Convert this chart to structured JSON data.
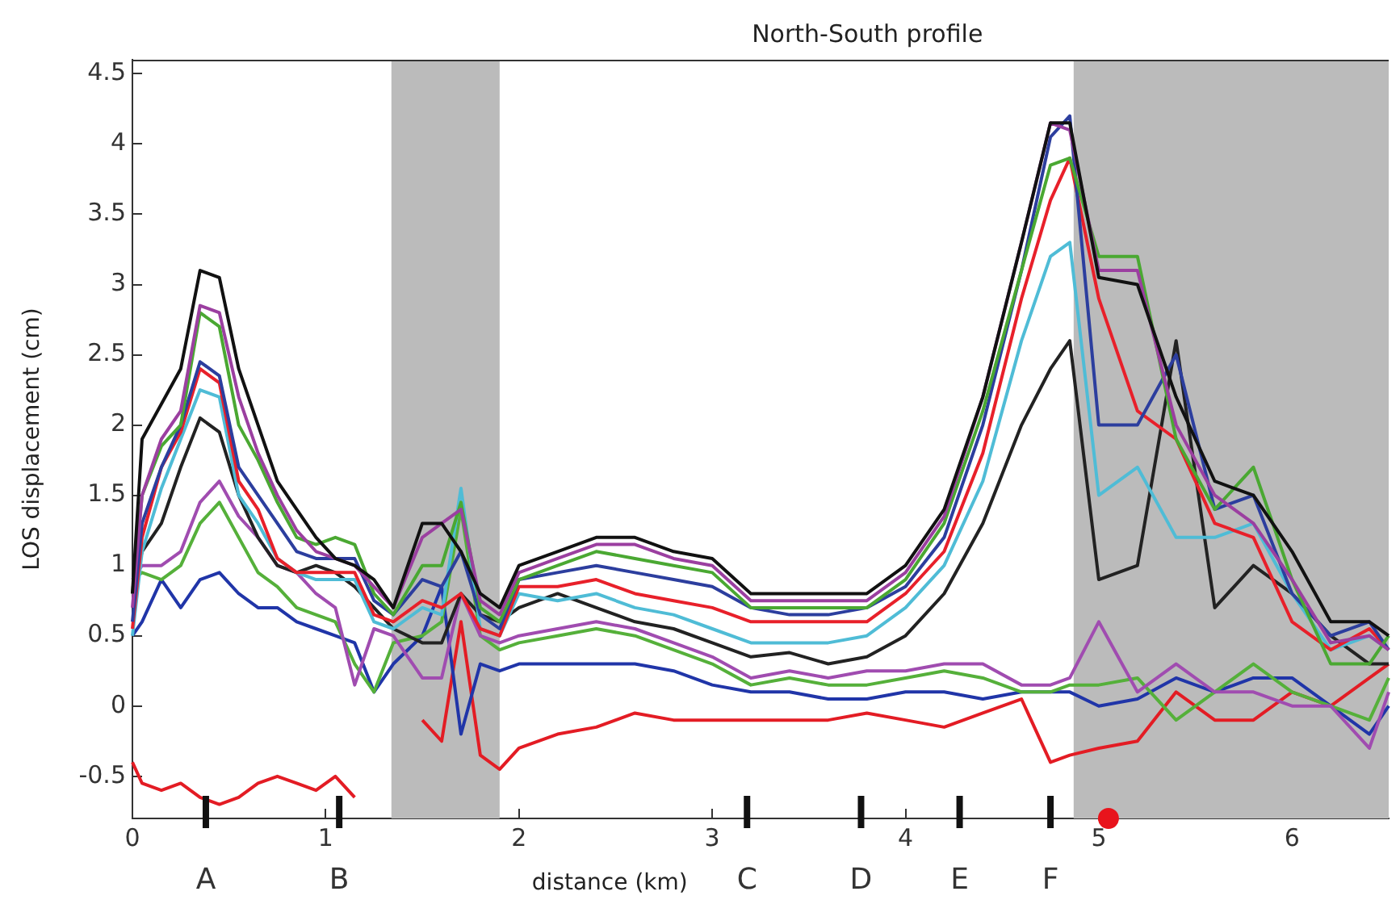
{
  "chart_data": {
    "type": "line",
    "title": "North-South profile",
    "xlabel": "distance (km)",
    "ylabel": "LOS displacement (cm)",
    "x": [
      0,
      0.05,
      0.15,
      0.25,
      0.35,
      0.45,
      0.55,
      0.65,
      0.75,
      0.85,
      0.95,
      1.05,
      1.15,
      1.25,
      1.35,
      1.5,
      1.6,
      1.7,
      1.8,
      1.9,
      2.0,
      2.2,
      2.4,
      2.6,
      2.8,
      3.0,
      3.2,
      3.4,
      3.6,
      3.8,
      4.0,
      4.2,
      4.4,
      4.6,
      4.75,
      4.85,
      5.0,
      5.2,
      5.4,
      5.6,
      5.8,
      6.0,
      6.2,
      6.4,
      6.5
    ],
    "series": [
      {
        "color": "#111111",
        "values": [
          0.8,
          1.9,
          2.15,
          2.4,
          3.1,
          3.05,
          2.4,
          2.0,
          1.6,
          1.4,
          1.2,
          1.05,
          1.0,
          0.9,
          0.7,
          1.3,
          1.3,
          1.1,
          0.8,
          0.7,
          1.0,
          1.1,
          1.2,
          1.2,
          1.1,
          1.05,
          0.8,
          0.8,
          0.8,
          0.8,
          1.0,
          1.4,
          2.2,
          3.3,
          4.15,
          4.15,
          3.05,
          3.0,
          2.2,
          1.6,
          1.5,
          1.1,
          0.6,
          0.6,
          0.5
        ]
      },
      {
        "color": "#9b3fa0",
        "values": [
          0.7,
          1.5,
          1.9,
          2.1,
          2.85,
          2.8,
          2.2,
          1.8,
          1.5,
          1.25,
          1.1,
          1.05,
          1.0,
          0.85,
          0.7,
          1.2,
          1.3,
          1.4,
          0.75,
          0.65,
          0.95,
          1.05,
          1.15,
          1.15,
          1.05,
          1.0,
          0.75,
          0.75,
          0.75,
          0.75,
          0.95,
          1.35,
          2.2,
          3.3,
          4.15,
          4.1,
          3.1,
          3.1,
          2.0,
          1.5,
          1.3,
          0.9,
          0.45,
          0.5,
          0.4
        ]
      },
      {
        "color": "#4aa832",
        "values": [
          0.8,
          1.5,
          1.85,
          2.0,
          2.8,
          2.7,
          2.0,
          1.75,
          1.45,
          1.2,
          1.15,
          1.2,
          1.15,
          0.8,
          0.65,
          1.0,
          1.0,
          1.45,
          0.7,
          0.6,
          0.9,
          1.0,
          1.1,
          1.05,
          1.0,
          0.95,
          0.7,
          0.7,
          0.7,
          0.7,
          0.9,
          1.3,
          2.1,
          3.1,
          3.85,
          3.9,
          3.2,
          3.2,
          1.9,
          1.4,
          1.7,
          0.9,
          0.3,
          0.3,
          0.5
        ]
      },
      {
        "color": "#2c3e9e",
        "values": [
          0.6,
          1.3,
          1.7,
          2.0,
          2.45,
          2.35,
          1.7,
          1.5,
          1.3,
          1.1,
          1.05,
          1.05,
          1.05,
          0.75,
          0.65,
          0.9,
          0.85,
          1.1,
          0.65,
          0.55,
          0.9,
          0.95,
          1.0,
          0.95,
          0.9,
          0.85,
          0.7,
          0.65,
          0.65,
          0.7,
          0.85,
          1.2,
          2.0,
          3.1,
          4.05,
          4.2,
          2.0,
          2.0,
          2.5,
          1.4,
          1.5,
          0.8,
          0.5,
          0.6,
          0.4
        ]
      },
      {
        "color": "#e8202a",
        "values": [
          0.55,
          1.2,
          1.7,
          1.95,
          2.4,
          2.3,
          1.6,
          1.4,
          1.05,
          0.95,
          0.95,
          0.95,
          0.95,
          0.65,
          0.6,
          0.75,
          0.7,
          0.8,
          0.55,
          0.5,
          0.85,
          0.85,
          0.9,
          0.8,
          0.75,
          0.7,
          0.6,
          0.6,
          0.6,
          0.6,
          0.8,
          1.1,
          1.8,
          2.9,
          3.6,
          3.9,
          2.9,
          2.1,
          1.9,
          1.3,
          1.2,
          0.6,
          0.4,
          0.55,
          0.4
        ]
      },
      {
        "color": "#4fbcd6",
        "values": [
          0.5,
          1.1,
          1.55,
          1.9,
          2.25,
          2.2,
          1.5,
          1.3,
          1.05,
          0.95,
          0.9,
          0.9,
          0.9,
          0.6,
          0.55,
          0.7,
          0.65,
          1.55,
          0.55,
          0.5,
          0.8,
          0.75,
          0.8,
          0.7,
          0.65,
          0.55,
          0.45,
          0.45,
          0.45,
          0.5,
          0.7,
          1.0,
          1.6,
          2.6,
          3.2,
          3.3,
          1.5,
          1.7,
          1.2,
          1.2,
          1.3,
          0.8,
          0.4,
          0.5,
          0.4
        ]
      },
      {
        "color": "#222222",
        "values": [
          0.8,
          1.1,
          1.3,
          1.7,
          2.05,
          1.95,
          1.5,
          1.2,
          1.0,
          0.95,
          1.0,
          0.95,
          0.85,
          0.7,
          0.55,
          0.45,
          0.45,
          0.8,
          0.65,
          0.6,
          0.7,
          0.8,
          0.7,
          0.6,
          0.55,
          0.45,
          0.35,
          0.38,
          0.3,
          0.35,
          0.5,
          0.8,
          1.3,
          2.0,
          2.4,
          2.6,
          0.9,
          1.0,
          2.6,
          0.7,
          1.0,
          0.8,
          0.5,
          0.3,
          0.3
        ]
      },
      {
        "color": "#a04cb0",
        "values": [
          0.9,
          1.0,
          1.0,
          1.1,
          1.45,
          1.6,
          1.35,
          1.2,
          1.0,
          0.95,
          0.8,
          0.7,
          0.15,
          0.55,
          0.5,
          0.2,
          0.2,
          0.8,
          0.5,
          0.45,
          0.5,
          0.55,
          0.6,
          0.55,
          0.45,
          0.35,
          0.2,
          0.25,
          0.2,
          0.25,
          0.25,
          0.3,
          0.3,
          0.15,
          0.15,
          0.2,
          0.6,
          0.1,
          0.3,
          0.1,
          0.1,
          0.0,
          0.0,
          -0.3,
          0.1
        ]
      },
      {
        "color": "#55b03a",
        "values": [
          0.9,
          0.95,
          0.9,
          1.0,
          1.3,
          1.45,
          1.2,
          0.95,
          0.85,
          0.7,
          0.65,
          0.6,
          0.3,
          0.1,
          0.45,
          0.5,
          0.6,
          1.4,
          0.5,
          0.4,
          0.45,
          0.5,
          0.55,
          0.5,
          0.4,
          0.3,
          0.15,
          0.2,
          0.15,
          0.15,
          0.2,
          0.25,
          0.2,
          0.1,
          0.1,
          0.15,
          0.15,
          0.2,
          -0.1,
          0.1,
          0.3,
          0.1,
          0.0,
          -0.1,
          0.2
        ]
      },
      {
        "color": "#2035a8",
        "values": [
          0.5,
          0.6,
          0.9,
          0.7,
          0.9,
          0.95,
          0.8,
          0.7,
          0.7,
          0.6,
          0.55,
          0.5,
          0.45,
          0.1,
          0.3,
          0.5,
          0.85,
          -0.2,
          0.3,
          0.25,
          0.3,
          0.3,
          0.3,
          0.3,
          0.25,
          0.15,
          0.1,
          0.1,
          0.05,
          0.05,
          0.1,
          0.1,
          0.05,
          0.1,
          0.1,
          0.1,
          0.0,
          0.05,
          0.2,
          0.1,
          0.2,
          0.2,
          0.0,
          -0.2,
          0.0
        ]
      },
      {
        "color": "#e31c24",
        "values": [
          -0.4,
          -0.55,
          -0.6,
          -0.55,
          -0.65,
          -0.7,
          -0.65,
          -0.55,
          -0.5,
          -0.55,
          -0.6,
          -0.5,
          -0.65,
          null,
          null,
          -0.1,
          -0.25,
          0.6,
          -0.35,
          -0.45,
          -0.3,
          -0.2,
          -0.15,
          -0.05,
          -0.1,
          -0.1,
          -0.1,
          -0.1,
          -0.1,
          -0.05,
          -0.1,
          -0.15,
          -0.05,
          0.05,
          -0.4,
          -0.35,
          -0.3,
          -0.25,
          0.1,
          -0.1,
          -0.1,
          0.1,
          0.0,
          0.2,
          0.3
        ]
      },
      {
        "type": "scatter",
        "color": "#e8141c",
        "marker": "circle",
        "x": [
          5.05
        ],
        "values": [
          -0.8
        ]
      }
    ],
    "bands": [
      {
        "axis": "x",
        "from": 1.34,
        "to": 1.9,
        "color": "#bbbbbb"
      },
      {
        "axis": "x",
        "from": 4.87,
        "to": 6.5,
        "color": "#bbbbbb"
      }
    ],
    "ref_lines": [
      {
        "axis": "x",
        "value": 0.38,
        "label": "A",
        "color": "#111111",
        "line_style": "solid"
      },
      {
        "axis": "x",
        "value": 1.07,
        "label": "B",
        "color": "#111111",
        "line_style": "solid"
      },
      {
        "axis": "x",
        "value": 3.18,
        "label": "C",
        "color": "#111111",
        "line_style": "solid"
      },
      {
        "axis": "x",
        "value": 3.77,
        "label": "D",
        "color": "#111111",
        "line_style": "solid"
      },
      {
        "axis": "x",
        "value": 4.28,
        "label": "E",
        "color": "#111111",
        "line_style": "solid"
      },
      {
        "axis": "x",
        "value": 4.75,
        "label": "F",
        "color": "#111111",
        "line_style": "solid"
      }
    ],
    "xlim": [
      0,
      6.5
    ],
    "ylim": [
      -0.8,
      4.6
    ],
    "xticks": [
      0,
      1,
      2,
      3,
      4,
      5,
      6
    ],
    "yticks": [
      -0.5,
      0,
      0.5,
      1,
      1.5,
      2,
      2.5,
      3,
      3.5,
      4,
      4.5
    ],
    "grid": false,
    "legend": false,
    "marker": "none",
    "line_style": "solid"
  }
}
